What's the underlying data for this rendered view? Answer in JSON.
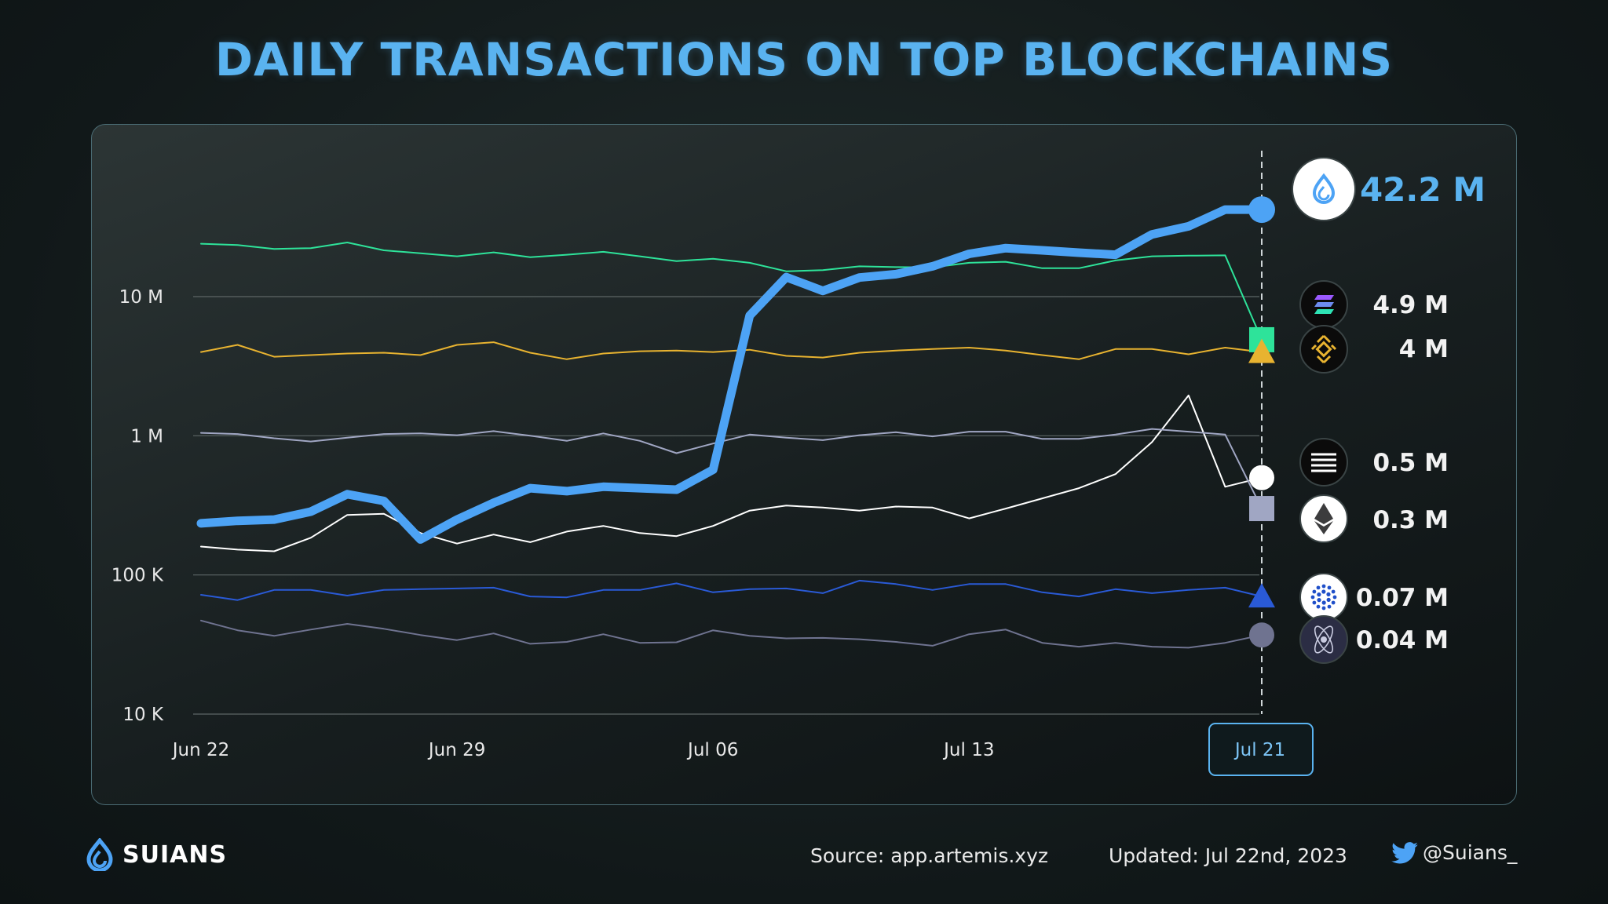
{
  "title": "DAILY TRANSACTIONS ON TOP BLOCKCHAINS",
  "footer": {
    "brand": "SUIANS",
    "source": "Source: app.artemis.xyz",
    "updated": "Updated: Jul 22nd, 2023",
    "handle": "@Suians_"
  },
  "chart_data": {
    "type": "line",
    "title": "DAILY TRANSACTIONS ON TOP BLOCKCHAINS",
    "xlabel": "",
    "ylabel": "",
    "y_scale": "log",
    "ylim": [
      10000,
      60000000
    ],
    "grid": true,
    "x_ticks": [
      "Jun 22",
      "Jun 29",
      "Jul 06",
      "Jul 13",
      "Jul 21"
    ],
    "y_ticks": [
      {
        "value": 10000,
        "label": "10 K"
      },
      {
        "value": 100000,
        "label": "100 K"
      },
      {
        "value": 1000000,
        "label": "1 M"
      },
      {
        "value": 10000000,
        "label": "10 M"
      }
    ],
    "x": [
      "Jun 22",
      "Jun 23",
      "Jun 24",
      "Jun 25",
      "Jun 26",
      "Jun 27",
      "Jun 28",
      "Jun 29",
      "Jun 30",
      "Jul 01",
      "Jul 02",
      "Jul 03",
      "Jul 04",
      "Jul 05",
      "Jul 06",
      "Jul 07",
      "Jul 08",
      "Jul 09",
      "Jul 10",
      "Jul 11",
      "Jul 12",
      "Jul 13",
      "Jul 14",
      "Jul 15",
      "Jul 16",
      "Jul 17",
      "Jul 18",
      "Jul 19",
      "Jul 20",
      "Jul 21"
    ],
    "series": [
      {
        "key": "sui",
        "color": "#4da3f5",
        "width": 11,
        "marker": "circle",
        "end_label": "42.2 M",
        "icon": "sui-logo-icon",
        "values": [
          235000,
          245000,
          250000,
          285000,
          380000,
          340000,
          180000,
          250000,
          330000,
          420000,
          400000,
          430000,
          420000,
          410000,
          570000,
          7300000,
          13800000,
          11000000,
          13700000,
          14500000,
          16500000,
          20300000,
          22300000,
          21500000,
          20700000,
          20000000,
          28000000,
          32000000,
          42200000,
          42200000
        ]
      },
      {
        "key": "solana",
        "color": "#2ee39a",
        "width": 2,
        "marker": "square",
        "end_label": "4.9 M",
        "icon": "solana-logo-icon",
        "values": [
          24000000,
          23500000,
          22000000,
          22300000,
          24500000,
          21500000,
          20500000,
          19500000,
          20800000,
          19200000,
          20000000,
          21000000,
          19500000,
          18000000,
          18700000,
          17500000,
          15200000,
          15500000,
          16500000,
          16300000,
          16200000,
          17500000,
          17800000,
          16000000,
          16000000,
          18200000,
          19500000,
          19700000,
          19800000,
          4900000
        ]
      },
      {
        "key": "bnb",
        "color": "#e8b330",
        "width": 2,
        "marker": "triangle",
        "end_label": "4 M",
        "icon": "bnb-logo-icon",
        "values": [
          4000000,
          4500000,
          3700000,
          3800000,
          3900000,
          3950000,
          3800000,
          4500000,
          4700000,
          3950000,
          3550000,
          3900000,
          4050000,
          4100000,
          4000000,
          4150000,
          3750000,
          3650000,
          3950000,
          4100000,
          4200000,
          4300000,
          4100000,
          3800000,
          3550000,
          4200000,
          4200000,
          3850000,
          4300000,
          4000000
        ]
      },
      {
        "key": "aptos",
        "color": "#ffffff",
        "width": 2,
        "marker": "circle",
        "end_label": "0.5 M",
        "icon": "aptos-logo-icon",
        "values": [
          160000,
          152000,
          148000,
          185000,
          270000,
          275000,
          200000,
          168000,
          195000,
          172000,
          205000,
          225000,
          200000,
          190000,
          225000,
          290000,
          315000,
          305000,
          290000,
          310000,
          305000,
          255000,
          300000,
          355000,
          420000,
          530000,
          900000,
          1950000,
          430000,
          500000
        ]
      },
      {
        "key": "ethereum",
        "color": "#a0a6c3",
        "width": 2,
        "marker": "square",
        "end_label": "0.3 M",
        "icon": "ethereum-logo-icon",
        "values": [
          1050000,
          1030000,
          960000,
          910000,
          970000,
          1030000,
          1040000,
          1010000,
          1080000,
          1000000,
          920000,
          1040000,
          920000,
          750000,
          880000,
          1020000,
          970000,
          930000,
          1010000,
          1060000,
          990000,
          1070000,
          1070000,
          950000,
          950000,
          1020000,
          1120000,
          1070000,
          1020000,
          300000
        ]
      },
      {
        "key": "cardano",
        "color": "#2a5ad6",
        "width": 2,
        "marker": "triangle",
        "end_label": "0.07 M",
        "icon": "cardano-logo-icon",
        "values": [
          72000,
          66000,
          78000,
          78000,
          71000,
          78000,
          79000,
          80000,
          81000,
          70000,
          69000,
          78000,
          78000,
          87000,
          75000,
          79000,
          80000,
          74000,
          91000,
          86000,
          78000,
          86000,
          86000,
          75000,
          70000,
          79000,
          74000,
          78000,
          81000,
          70000
        ]
      },
      {
        "key": "cosmos",
        "color": "#6f7390",
        "width": 2,
        "marker": "circle",
        "end_label": "0.04 M",
        "icon": "cosmos-logo-icon",
        "values": [
          47000,
          40000,
          36500,
          40500,
          44500,
          41000,
          37000,
          34000,
          38000,
          32000,
          33000,
          37500,
          32500,
          32800,
          40000,
          36500,
          35000,
          35300,
          34500,
          33000,
          31000,
          37500,
          40500,
          32500,
          30500,
          32500,
          30500,
          30000,
          32500,
          37000
        ]
      }
    ],
    "highlight_x": "Jul 21"
  }
}
